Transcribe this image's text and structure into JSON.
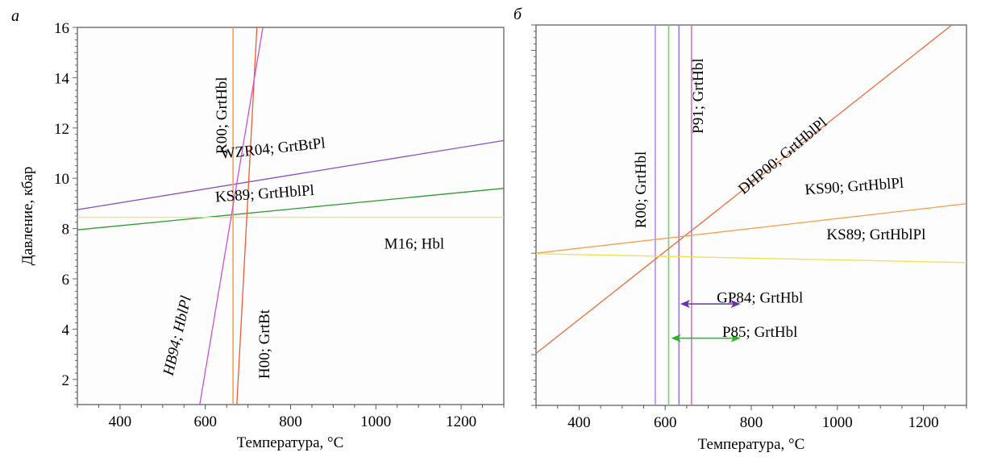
{
  "chart_data": [
    {
      "type": "line",
      "panel_label": "а",
      "xlabel": "Температура, °C",
      "ylabel": "Давление, кбар",
      "xlim": [
        300,
        1300
      ],
      "ylim": [
        1,
        16
      ],
      "xticks": [
        400,
        600,
        800,
        1000,
        1200
      ],
      "yticks": [
        2,
        4,
        6,
        8,
        10,
        12,
        14,
        16
      ],
      "grid": false,
      "legend": "none (inline line labels)",
      "series": [
        {
          "name": "WZR04; GrtBtPl",
          "color": "#8a4fc8",
          "x": [
            300,
            1300
          ],
          "y": [
            8.75,
            11.5
          ]
        },
        {
          "name": "KS89; GrtHblPl",
          "color": "#2e9a2e",
          "x": [
            300,
            1300
          ],
          "y": [
            7.95,
            9.6
          ]
        },
        {
          "name": "M16; Hbl",
          "color": "#f2e060",
          "x": [
            300,
            1300
          ],
          "y": [
            8.45,
            8.45
          ]
        },
        {
          "name": "R00; GrtHbl",
          "color": "#f7a050",
          "x": [
            665,
            665
          ],
          "y": [
            1,
            16
          ]
        },
        {
          "name": "H00; GrtBt",
          "color": "#f05a30",
          "x": [
            674,
            721
          ],
          "y": [
            1,
            16
          ]
        },
        {
          "name": "HB94; HblPl",
          "color": "#d24fd2",
          "x": [
            587,
            735
          ],
          "y": [
            1,
            16
          ]
        }
      ],
      "labels": [
        {
          "text": "R00; GrtHbl",
          "x": 650,
          "y": 12.5,
          "rotate": -90,
          "italic": false
        },
        {
          "text": "WZR04; GrtBtPl",
          "x": 760,
          "y": 11.0,
          "rotate": -6,
          "italic": false
        },
        {
          "text": "KS89; GrtHblPl",
          "x": 740,
          "y": 9.2,
          "rotate": -4,
          "italic": false
        },
        {
          "text": "M16; Hbl",
          "x": 1090,
          "y": 7.2,
          "rotate": 0,
          "italic": false
        },
        {
          "text": "H00; GrtBt",
          "x": 750,
          "y": 3.4,
          "rotate": -90,
          "italic": false
        },
        {
          "text": "HB94; HblPl",
          "x": 545,
          "y": 3.7,
          "rotate": -77,
          "italic": true
        }
      ]
    },
    {
      "type": "line",
      "panel_label": "б",
      "xlabel": "Температура, °C",
      "ylabel": "",
      "xlim": [
        300,
        1300
      ],
      "ylim": [
        1,
        16
      ],
      "xticks": [
        400,
        600,
        800,
        1000,
        1200
      ],
      "yticks": [],
      "grid": false,
      "legend": "none (inline line labels)",
      "series": [
        {
          "name": "R00; GrtHbl",
          "color": "#b48ce0",
          "x": [
            577,
            577
          ],
          "y": [
            1,
            16
          ]
        },
        {
          "name": "P85; GrtHbl",
          "color": "#6fd86f",
          "x": [
            608,
            608
          ],
          "y": [
            1,
            16
          ]
        },
        {
          "name": "GP84; GrtHbl",
          "color": "#9a7ad6",
          "x": [
            632,
            632
          ],
          "y": [
            1,
            16
          ]
        },
        {
          "name": "P91; GrtHbl",
          "color": "#e070d0",
          "x": [
            661,
            661
          ],
          "y": [
            1,
            16
          ]
        },
        {
          "name": "DHP00; GrtHblPl",
          "color": "#f26c3c",
          "x": [
            300,
            1266
          ],
          "y": [
            3.05,
            16
          ]
        },
        {
          "name": "KS90; GrtHblPl",
          "color": "#f5a050",
          "x": [
            300,
            1300
          ],
          "y": [
            7.0,
            8.95
          ]
        },
        {
          "name": "KS89; GrtHblPl",
          "color": "#f0e050",
          "x": [
            300,
            1300
          ],
          "y": [
            6.98,
            6.63
          ]
        }
      ],
      "labels": [
        {
          "text": "R00; GrtHbl",
          "x": 555,
          "y": 9.5,
          "rotate": -90,
          "italic": false
        },
        {
          "text": "P91; GrtHbl",
          "x": 688,
          "y": 13.2,
          "rotate": -90,
          "italic": false
        },
        {
          "text": "DHP00; GrtHblPl",
          "x": 880,
          "y": 10.7,
          "rotate": -40,
          "italic": false
        },
        {
          "text": "KS90; GrtHblPl",
          "x": 1040,
          "y": 9.45,
          "rotate": -4,
          "italic": false
        },
        {
          "text": "KS89; GrtHblPl",
          "x": 1090,
          "y": 7.55,
          "rotate": 0,
          "italic": false
        },
        {
          "text": "GP84; GrtHbl",
          "x": 820,
          "y": 5.05,
          "rotate": 0,
          "italic": false
        },
        {
          "text": "P85; GrtHbl",
          "x": 820,
          "y": 3.7,
          "rotate": 0,
          "italic": false
        }
      ],
      "arrows": [
        {
          "name": "GP84-arrow",
          "color": "#6a2fb0",
          "x": [
            635,
            775
          ],
          "y": 5.0,
          "double_headed": true
        },
        {
          "name": "P85-arrow",
          "color": "#22b822",
          "x": [
            614,
            775
          ],
          "y": 3.65,
          "double_headed": true
        }
      ]
    }
  ]
}
